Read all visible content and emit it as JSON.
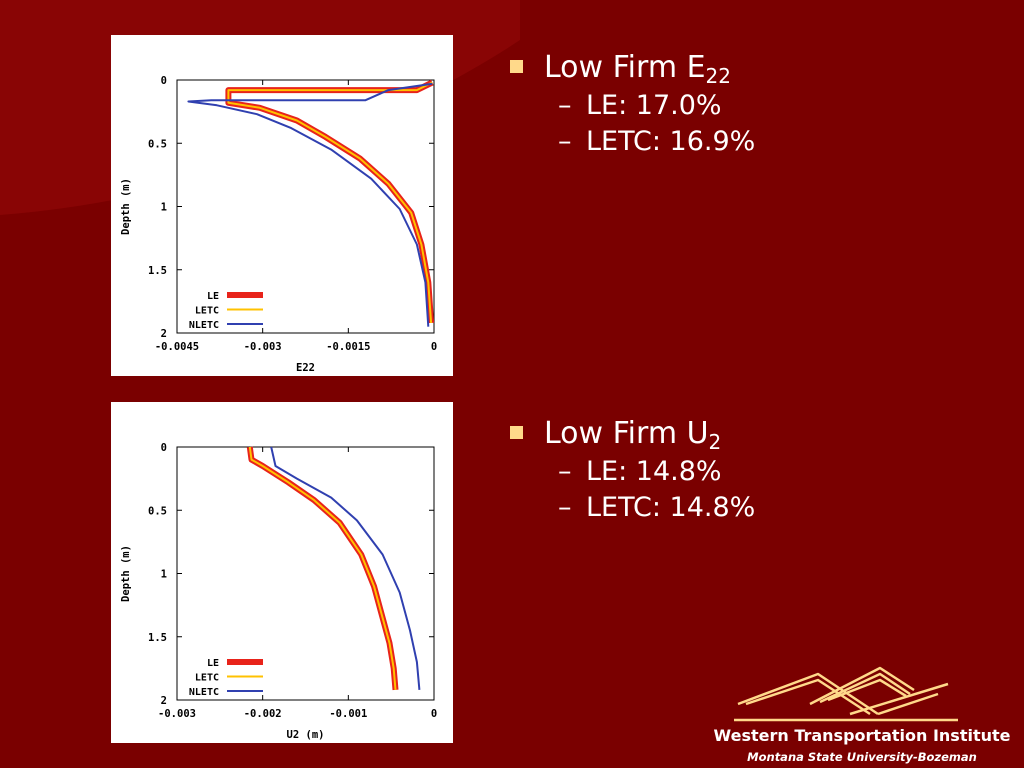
{
  "slide": {
    "background_color": "#7a0000",
    "bullet_color": "#ffd98a",
    "text_color": "#ffffff"
  },
  "bullets": [
    {
      "label": "Low Firm E",
      "subscript": "22",
      "items": [
        "LE: 17.0%",
        "LETC: 16.9%"
      ],
      "dash": "–"
    },
    {
      "label": "Low Firm U",
      "subscript": "2",
      "items": [
        "LE: 14.8%",
        "LETC: 14.8%"
      ],
      "dash": "–"
    }
  ],
  "logo": {
    "name": "Western Transportation Institute",
    "subtitle": "Montana State University-Bozeman",
    "color": "#ffd98a"
  },
  "chart_data": [
    {
      "type": "line",
      "xlabel": "E22",
      "ylabel": "Depth (m)",
      "xlim": [
        -0.0045,
        0
      ],
      "ylim": [
        0,
        2
      ],
      "y_inverted": true,
      "xticks": [
        "-0.0045",
        "-0.003",
        "-0.0015",
        "0"
      ],
      "xtick_values": [
        -0.0045,
        -0.003,
        -0.0015,
        0
      ],
      "yticks": [
        "0",
        "0.5",
        "1",
        "1.5",
        "2"
      ],
      "ytick_values": [
        0,
        0.5,
        1,
        1.5,
        2
      ],
      "legend_position": "bottom-left",
      "series": [
        {
          "name": "LE",
          "color": "#e8231a",
          "x": [
            -3e-05,
            -0.0003,
            -0.0036,
            -0.0036,
            -0.00305,
            -0.0024,
            -0.0019,
            -0.0013,
            -0.0008,
            -0.0004,
            -0.00022,
            -0.0001,
            -5e-05
          ],
          "y": [
            0.02,
            0.08,
            0.08,
            0.18,
            0.22,
            0.32,
            0.45,
            0.62,
            0.82,
            1.05,
            1.3,
            1.6,
            1.92
          ]
        },
        {
          "name": "LETC",
          "color": "#ffc200",
          "x": [
            -3e-05,
            -0.0003,
            -0.0036,
            -0.0036,
            -0.00305,
            -0.0024,
            -0.0019,
            -0.0013,
            -0.0008,
            -0.0004,
            -0.00022,
            -0.0001,
            -5e-05
          ],
          "y": [
            0.02,
            0.08,
            0.08,
            0.18,
            0.22,
            0.32,
            0.45,
            0.62,
            0.82,
            1.05,
            1.3,
            1.6,
            1.92
          ]
        },
        {
          "name": "NLETC",
          "color": "#3040b0",
          "x": [
            -3e-05,
            -0.0008,
            -0.0012,
            -0.0039,
            -0.0043,
            -0.0038,
            -0.0031,
            -0.0025,
            -0.0018,
            -0.0011,
            -0.0006,
            -0.0003,
            -0.00015,
            -0.0001
          ],
          "y": [
            0.03,
            0.08,
            0.16,
            0.16,
            0.17,
            0.2,
            0.27,
            0.38,
            0.55,
            0.78,
            1.02,
            1.3,
            1.6,
            1.95
          ]
        }
      ]
    },
    {
      "type": "line",
      "xlabel": "U2 (m)",
      "ylabel": "Depth (m)",
      "xlim": [
        -0.003,
        0
      ],
      "ylim": [
        0,
        2
      ],
      "y_inverted": true,
      "xticks": [
        "-0.003",
        "-0.002",
        "-0.001",
        "0"
      ],
      "xtick_values": [
        -0.003,
        -0.002,
        -0.001,
        0
      ],
      "yticks": [
        "0",
        "0.5",
        "1",
        "1.5",
        "2"
      ],
      "ytick_values": [
        0,
        0.5,
        1,
        1.5,
        2
      ],
      "legend_position": "bottom-left",
      "series": [
        {
          "name": "LE",
          "color": "#e8231a",
          "x": [
            -0.00215,
            -0.00213,
            -0.002,
            -0.0017,
            -0.0014,
            -0.0011,
            -0.00085,
            -0.0007,
            -0.0006,
            -0.00052,
            -0.00047,
            -0.00045
          ],
          "y": [
            0.0,
            0.1,
            0.15,
            0.28,
            0.42,
            0.6,
            0.85,
            1.1,
            1.35,
            1.55,
            1.75,
            1.92
          ]
        },
        {
          "name": "LETC",
          "color": "#ffc200",
          "x": [
            -0.00215,
            -0.00213,
            -0.002,
            -0.0017,
            -0.0014,
            -0.0011,
            -0.00085,
            -0.0007,
            -0.0006,
            -0.00052,
            -0.00047,
            -0.00045
          ],
          "y": [
            0.0,
            0.1,
            0.15,
            0.28,
            0.42,
            0.6,
            0.85,
            1.1,
            1.35,
            1.55,
            1.75,
            1.92
          ]
        },
        {
          "name": "NLETC",
          "color": "#3040b0",
          "x": [
            -0.0019,
            -0.00185,
            -0.0016,
            -0.0012,
            -0.0009,
            -0.0006,
            -0.0004,
            -0.00028,
            -0.0002,
            -0.00017
          ],
          "y": [
            0.0,
            0.15,
            0.25,
            0.4,
            0.58,
            0.85,
            1.15,
            1.45,
            1.7,
            1.92
          ]
        }
      ]
    }
  ]
}
